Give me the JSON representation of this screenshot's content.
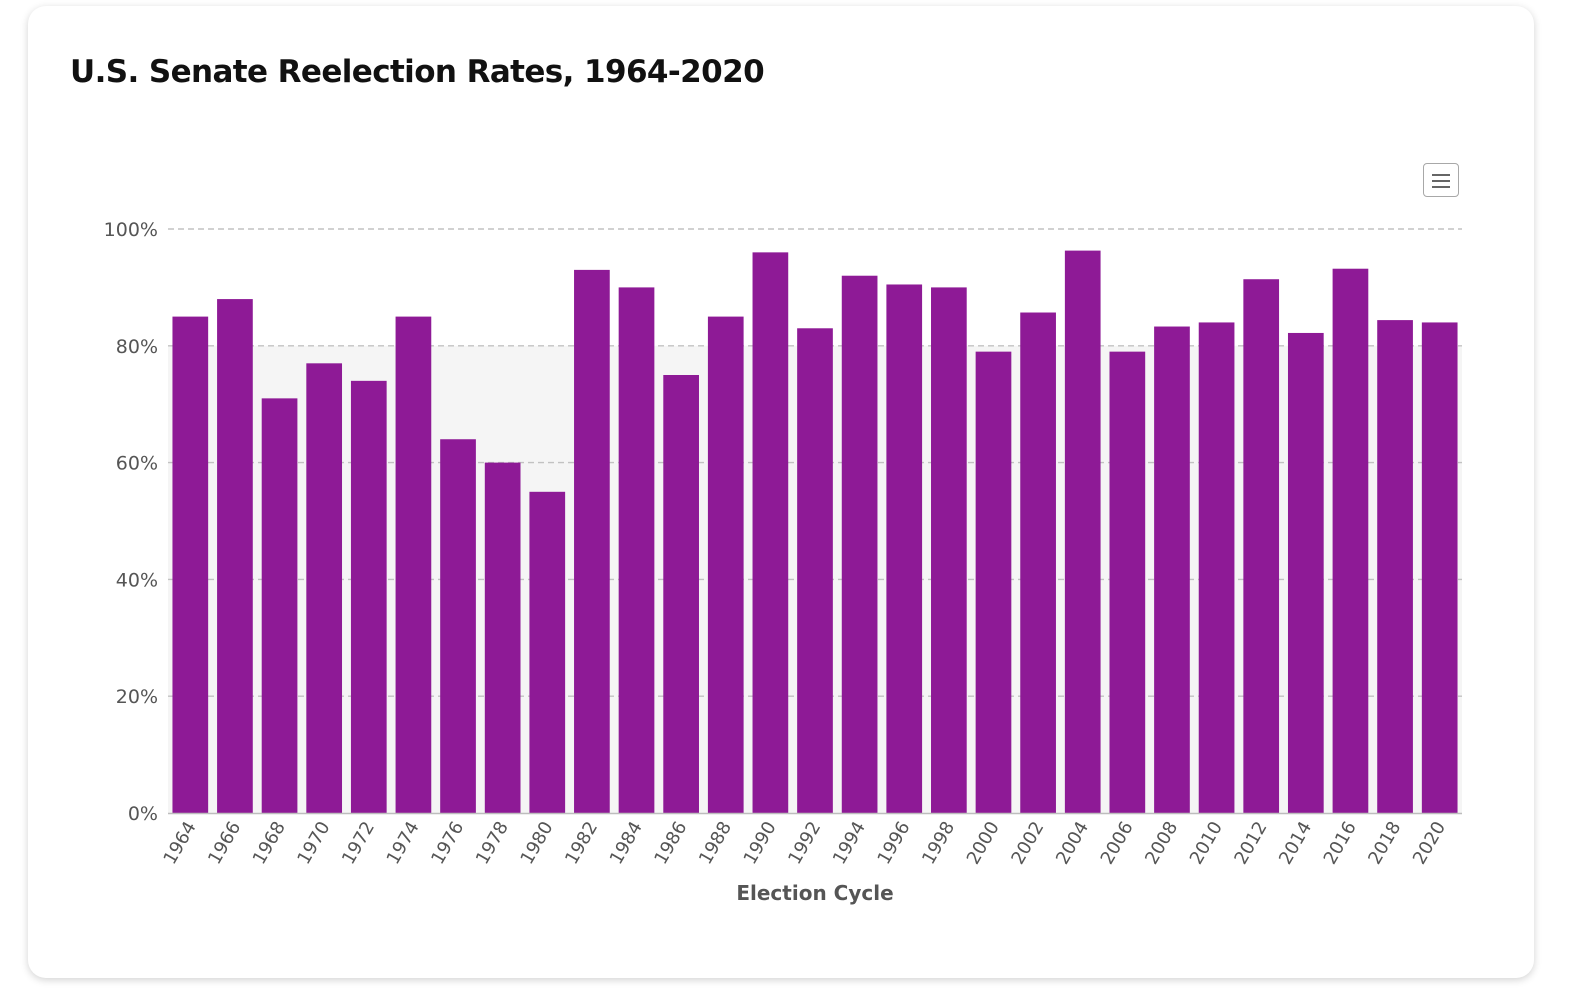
{
  "page": {
    "title": "U.S. Senate Reelection Rates, 1964-2020"
  },
  "toolbar": {
    "menu_icon": "hamburger-menu-icon"
  },
  "colors": {
    "bar": "#8e1a96",
    "plot_band": "#f5f5f5",
    "grid": "#c2c2c2",
    "axis_text": "#555555"
  },
  "chart_data": {
    "type": "bar",
    "title": "U.S. Senate Reelection Rates, 1964-2020",
    "xlabel": "Election Cycle",
    "ylabel": "",
    "ylim": [
      0,
      100
    ],
    "y_ticks": [
      "0%",
      "20%",
      "40%",
      "60%",
      "80%",
      "100%"
    ],
    "y_tick_values": [
      0,
      20,
      40,
      60,
      80,
      100
    ],
    "plot_band": [
      0,
      80
    ],
    "grid": true,
    "categories": [
      "1964",
      "1966",
      "1968",
      "1970",
      "1972",
      "1974",
      "1976",
      "1978",
      "1980",
      "1982",
      "1984",
      "1986",
      "1988",
      "1990",
      "1992",
      "1994",
      "1996",
      "1998",
      "2000",
      "2002",
      "2004",
      "2006",
      "2008",
      "2010",
      "2012",
      "2014",
      "2016",
      "2018",
      "2020"
    ],
    "values": [
      85,
      88,
      71,
      77,
      74,
      85,
      64,
      60,
      55,
      93,
      90,
      75,
      85,
      96,
      83,
      92,
      90.5,
      90,
      79,
      85.7,
      96.3,
      79,
      83.3,
      84,
      91.4,
      82.2,
      93.2,
      84.4,
      84
    ]
  }
}
